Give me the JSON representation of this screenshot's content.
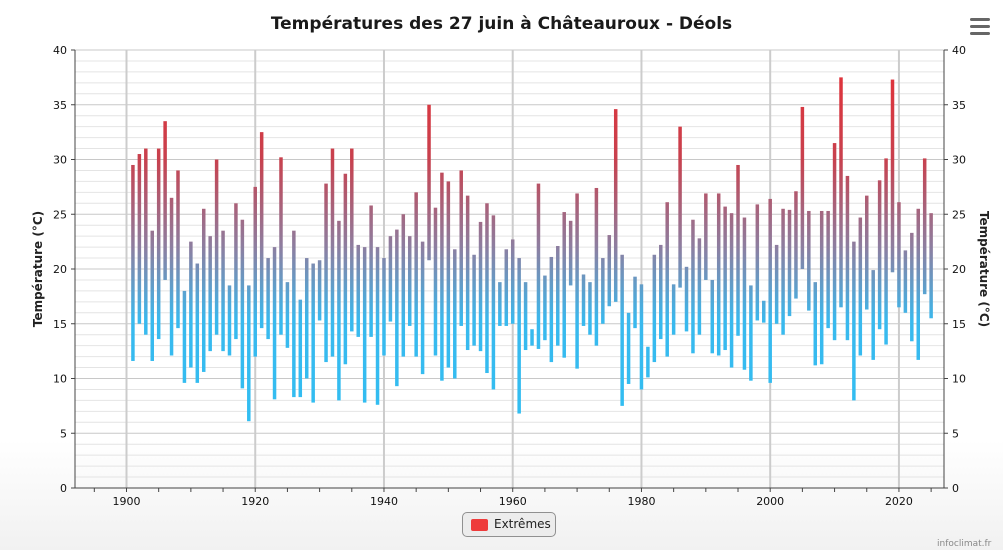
{
  "chart_data": {
    "type": "bar",
    "subtype": "floating-range (min to max per year)",
    "title": "Températures des 27 juin à Châteauroux - Déols",
    "ylabel_left": "Température (°C)",
    "ylabel_right": "Température (°C)",
    "xlim": [
      1892,
      2027
    ],
    "ylim": [
      0,
      40
    ],
    "x_ticks": [
      1900,
      1920,
      1940,
      1960,
      1980,
      2000,
      2020
    ],
    "y_ticks": [
      0,
      5,
      10,
      15,
      20,
      25,
      30,
      35,
      40
    ],
    "grid": true,
    "legend": {
      "label": "Extrêmes",
      "position": "bottom-center",
      "color": "#ee3b3b"
    },
    "colors": {
      "high": "#c8414e",
      "mid": "#8d7ea0",
      "low": "#39b9ee"
    },
    "years": [
      1901,
      1902,
      1903,
      1904,
      1905,
      1906,
      1907,
      1908,
      1909,
      1910,
      1911,
      1912,
      1913,
      1914,
      1915,
      1916,
      1917,
      1918,
      1919,
      1920,
      1921,
      1922,
      1923,
      1924,
      1925,
      1926,
      1927,
      1928,
      1929,
      1930,
      1931,
      1932,
      1933,
      1934,
      1935,
      1936,
      1937,
      1938,
      1939,
      1940,
      1941,
      1942,
      1943,
      1944,
      1945,
      1946,
      1947,
      1948,
      1949,
      1950,
      1951,
      1952,
      1953,
      1954,
      1955,
      1956,
      1957,
      1958,
      1959,
      1960,
      1961,
      1962,
      1963,
      1964,
      1965,
      1966,
      1967,
      1968,
      1969,
      1970,
      1971,
      1972,
      1973,
      1974,
      1975,
      1976,
      1977,
      1978,
      1979,
      1980,
      1981,
      1982,
      1983,
      1984,
      1985,
      1986,
      1987,
      1988,
      1989,
      1990,
      1991,
      1992,
      1993,
      1994,
      1995,
      1996,
      1997,
      1998,
      1999,
      2000,
      2001,
      2002,
      2003,
      2004,
      2005,
      2006,
      2007,
      2008,
      2009,
      2010,
      2011,
      2012,
      2013,
      2014,
      2015,
      2016,
      2017,
      2018,
      2019,
      2020,
      2021,
      2022,
      2023,
      2024,
      2025
    ],
    "min": [
      11.6,
      15.0,
      14.0,
      11.6,
      13.6,
      19.0,
      12.1,
      14.6,
      9.6,
      11.0,
      9.6,
      10.6,
      12.5,
      14.0,
      12.5,
      12.1,
      13.6,
      9.1,
      6.1,
      12.0,
      14.6,
      13.6,
      8.1,
      14.0,
      12.8,
      8.3,
      8.3,
      10.0,
      7.8,
      15.3,
      11.5,
      12.0,
      8.0,
      11.3,
      14.3,
      13.8,
      7.8,
      13.8,
      7.6,
      12.1,
      15.2,
      9.3,
      12.0,
      14.8,
      12.0,
      10.4,
      20.8,
      12.1,
      9.8,
      11.0,
      10.0,
      14.8,
      12.6,
      13.0,
      12.5,
      10.5,
      9.0,
      14.8,
      14.8,
      15.0,
      6.8,
      12.6,
      13.0,
      12.7,
      13.5,
      11.5,
      13.0,
      11.9,
      18.5,
      10.9,
      14.8,
      14.0,
      13.0,
      15.0,
      16.6,
      17.0,
      7.5,
      9.5,
      14.6,
      9.0,
      10.1,
      11.5,
      13.6,
      12.0,
      14.0,
      18.3,
      14.3,
      12.3,
      14.0,
      19.0,
      12.3,
      12.1,
      12.6,
      11.0,
      13.9,
      10.8,
      9.8,
      15.3,
      15.1,
      9.6,
      15.0,
      14.0,
      15.7,
      17.3,
      20.0,
      16.2,
      11.2,
      11.3,
      14.6,
      13.5,
      16.5,
      13.5,
      8.0,
      12.1,
      16.3,
      11.7,
      14.5,
      13.1,
      19.7,
      16.5,
      16.0,
      13.4,
      11.7,
      17.7,
      15.5
    ],
    "max": [
      29.5,
      30.5,
      31.0,
      23.5,
      31.0,
      33.5,
      26.5,
      29.0,
      18.0,
      22.5,
      20.5,
      25.5,
      23.0,
      30.0,
      23.5,
      18.5,
      26.0,
      24.5,
      18.5,
      27.5,
      32.5,
      21.0,
      22.0,
      30.2,
      18.8,
      23.5,
      17.2,
      21.0,
      20.5,
      20.8,
      27.8,
      31.0,
      24.4,
      28.7,
      31.0,
      22.2,
      22.0,
      25.8,
      22.0,
      21.0,
      23.0,
      23.6,
      25.0,
      23.0,
      27.0,
      22.5,
      35.0,
      25.6,
      28.8,
      28.0,
      21.8,
      29.0,
      26.7,
      21.3,
      24.3,
      26.0,
      24.9,
      18.8,
      21.8,
      22.7,
      21.0,
      18.8,
      14.5,
      27.8,
      19.4,
      21.1,
      22.1,
      25.2,
      24.4,
      26.9,
      19.5,
      18.8,
      27.4,
      21.0,
      23.1,
      34.6,
      21.3,
      16.0,
      19.3,
      18.6,
      12.9,
      21.3,
      22.2,
      26.1,
      18.6,
      33.0,
      20.2,
      24.5,
      22.8,
      26.9,
      19.0,
      26.9,
      25.7,
      25.1,
      29.5,
      24.7,
      18.5,
      25.9,
      17.1,
      26.4,
      22.2,
      25.5,
      25.4,
      27.1,
      34.8,
      25.3,
      18.8,
      25.3,
      25.3,
      31.5,
      37.5,
      28.5,
      22.5,
      24.7,
      26.7,
      19.9,
      28.1,
      30.1,
      37.3,
      26.1,
      21.7,
      23.3,
      25.5,
      30.1,
      25.1
    ]
  },
  "ui": {
    "menu_icon": "hamburger-menu-icon",
    "credit": "infoclimat.fr"
  }
}
